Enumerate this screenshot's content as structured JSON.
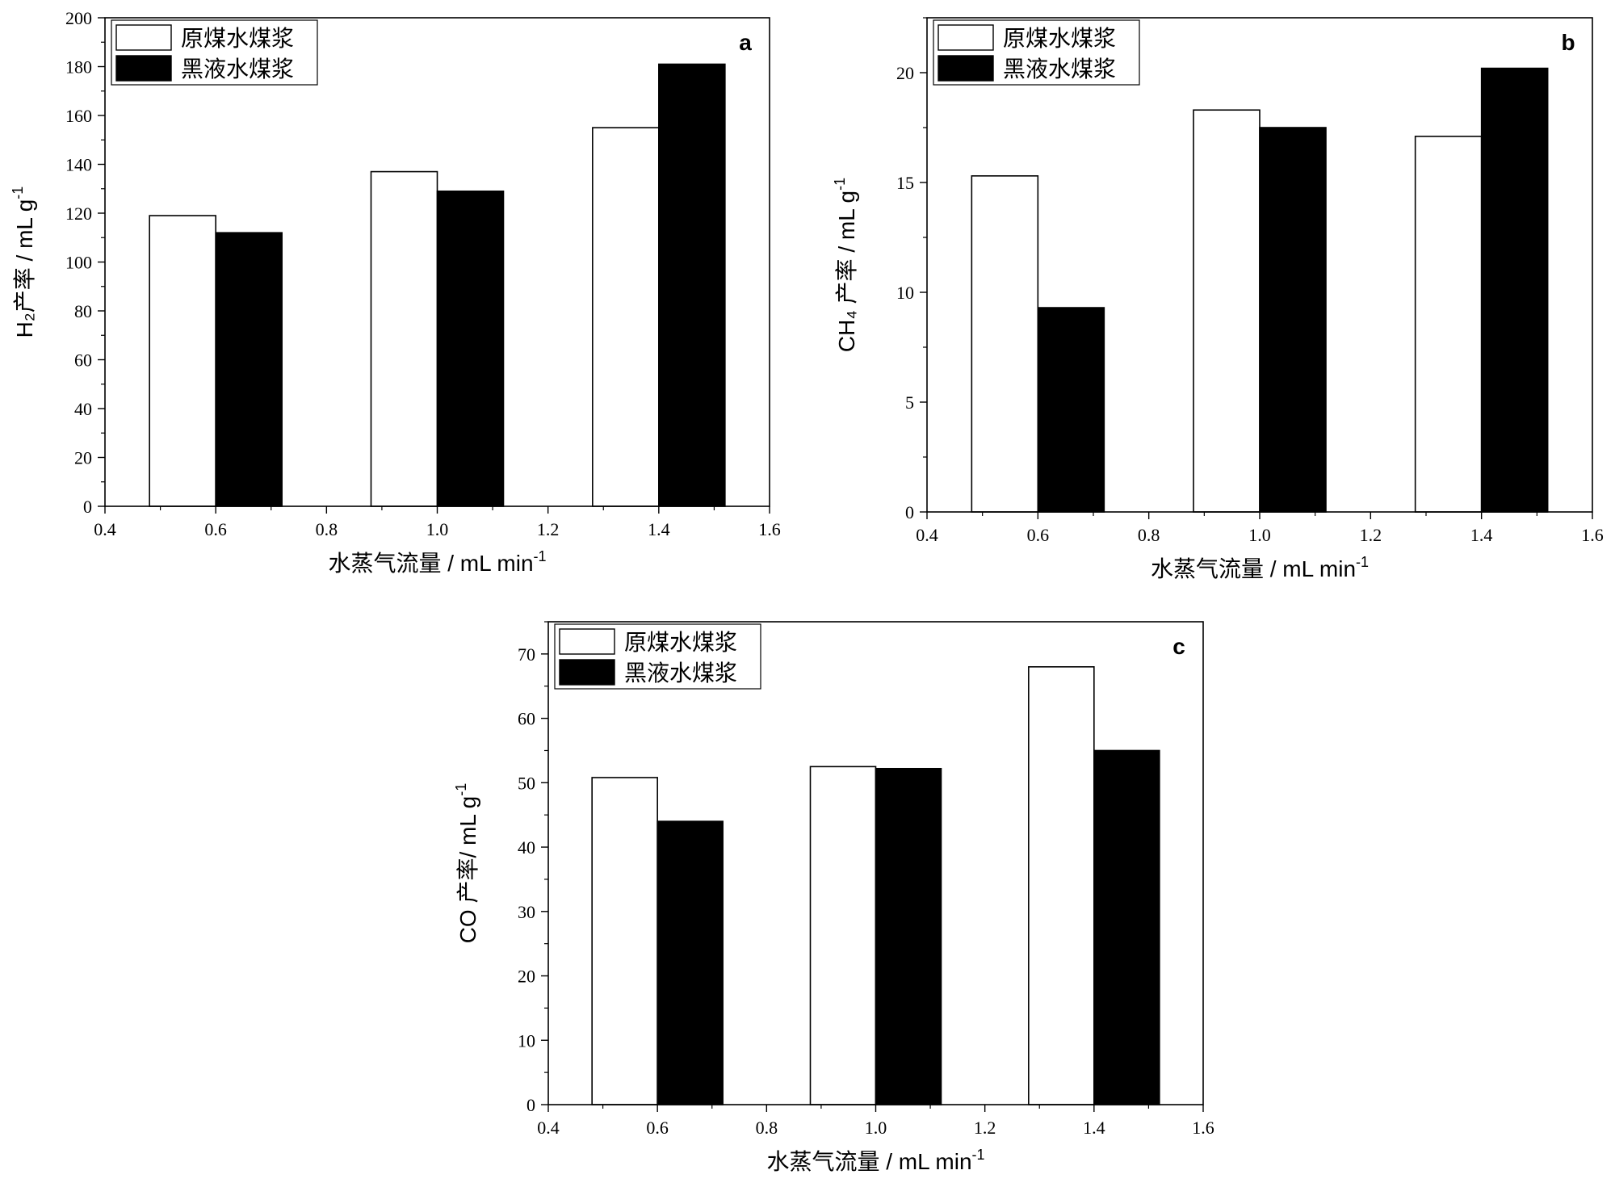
{
  "chart_data": [
    {
      "type": "bar",
      "panel_label": "a",
      "x": [
        0.6,
        1.0,
        1.4
      ],
      "series": [
        {
          "name": "原煤水煤浆",
          "color": "#ffffff",
          "values": [
            119,
            137,
            155
          ]
        },
        {
          "name": "黑液水煤浆",
          "color": "#000000",
          "values": [
            112,
            129,
            181
          ]
        }
      ],
      "xlabel": "水蒸气流量 / mL min",
      "xlabel_sup": "-1",
      "ylabel": "H₂产率 / mL g",
      "ylabel_sup": "-1",
      "xlim": [
        0.4,
        1.6
      ],
      "ylim": [
        0,
        200
      ],
      "xticks": [
        "0.4",
        "0.6",
        "0.8",
        "1.0",
        "1.2",
        "1.4",
        "1.6"
      ],
      "yticks": [
        "0",
        "20",
        "40",
        "60",
        "80",
        "100",
        "120",
        "140",
        "160",
        "180",
        "200"
      ],
      "legend_position": "top-left",
      "grid": false
    },
    {
      "type": "bar",
      "panel_label": "b",
      "x": [
        0.6,
        1.0,
        1.4
      ],
      "series": [
        {
          "name": "原煤水煤浆",
          "color": "#ffffff",
          "values": [
            15.3,
            18.3,
            17.1
          ]
        },
        {
          "name": "黑液水煤浆",
          "color": "#000000",
          "values": [
            9.3,
            17.5,
            20.2
          ]
        }
      ],
      "xlabel": "水蒸气流量 / mL min",
      "xlabel_sup": "-1",
      "ylabel": "CH₄ 产率 / mL g",
      "ylabel_sup": "-1",
      "xlim": [
        0.4,
        1.6
      ],
      "ylim": [
        0,
        22.5
      ],
      "xticks": [
        "0.4",
        "0.6",
        "0.8",
        "1.0",
        "1.2",
        "1.4",
        "1.6"
      ],
      "yticks": [
        "0",
        "5",
        "10",
        "15",
        "20"
      ],
      "legend_position": "top-left",
      "grid": false
    },
    {
      "type": "bar",
      "panel_label": "c",
      "x": [
        0.6,
        1.0,
        1.4
      ],
      "series": [
        {
          "name": "原煤水煤浆",
          "color": "#ffffff",
          "values": [
            50.8,
            52.5,
            68
          ]
        },
        {
          "name": "黑液水煤浆",
          "color": "#000000",
          "values": [
            44,
            52.2,
            55
          ]
        }
      ],
      "xlabel": "水蒸气流量 / mL min",
      "xlabel_sup": "-1",
      "ylabel": "CO 产率/ mL g",
      "ylabel_sup": "-1",
      "xlim": [
        0.4,
        1.6
      ],
      "ylim": [
        0,
        75
      ],
      "xticks": [
        "0.4",
        "0.6",
        "0.8",
        "1.0",
        "1.2",
        "1.4",
        "1.6"
      ],
      "yticks": [
        "0",
        "10",
        "20",
        "30",
        "40",
        "50",
        "60",
        "70"
      ],
      "legend_position": "top-left",
      "grid": false
    }
  ]
}
